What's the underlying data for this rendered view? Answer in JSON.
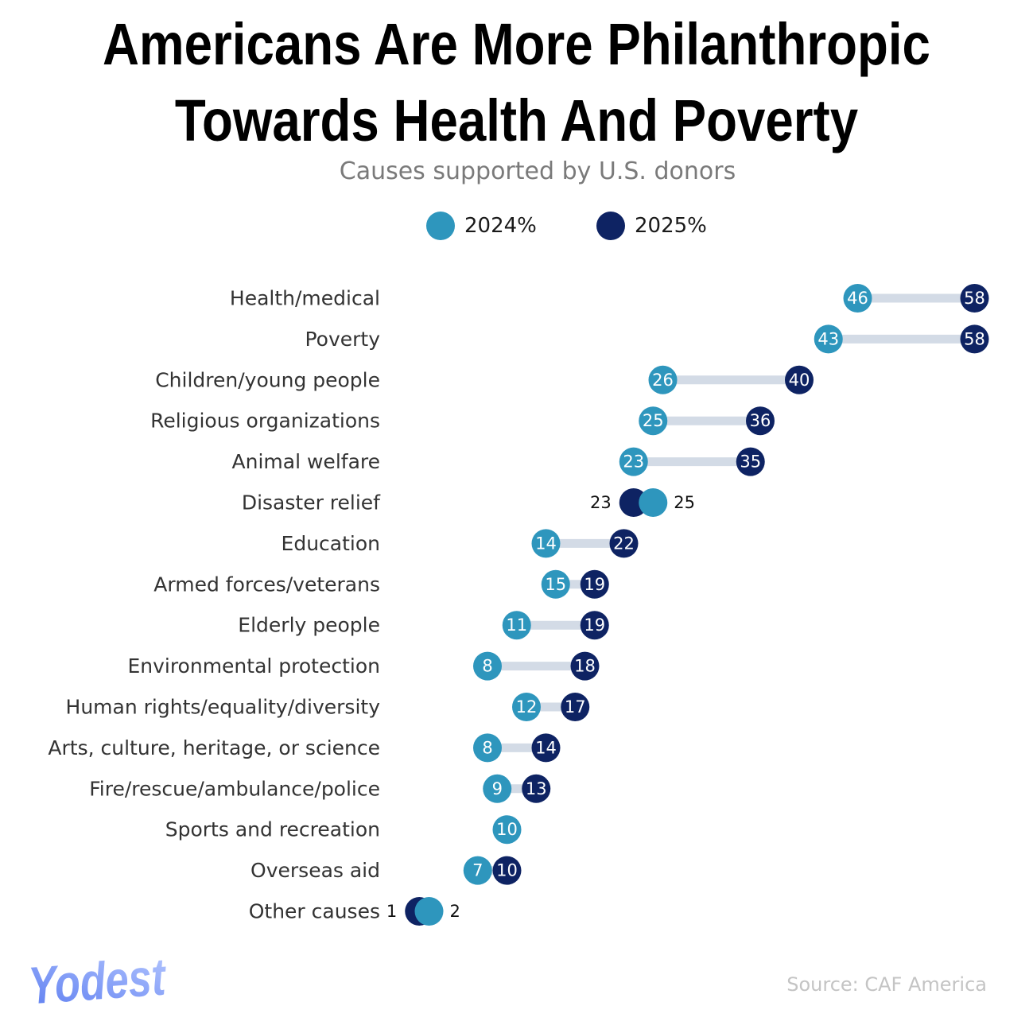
{
  "chart_data": {
    "type": "dumbbell",
    "title": "Americans Are More Philanthropic Towards Health And Poverty",
    "title_lines": [
      "Americans Are More Philanthropic",
      "Towards Health And Poverty"
    ],
    "subtitle": "Causes supported by U.S. donors",
    "series": [
      {
        "name": "2024%",
        "color": "#2e96bd"
      },
      {
        "name": "2025%",
        "color": "#0e2363"
      }
    ],
    "categories": [
      "Health/medical",
      "Poverty",
      "Children/young people",
      "Religious organizations",
      "Animal welfare",
      "Disaster relief",
      "Education",
      "Armed forces/veterans",
      "Elderly people",
      "Environmental protection",
      "Human rights/equality/diversity",
      "Arts, culture, heritage, or science",
      "Fire/rescue/ambulance/police",
      "Sports and recreation",
      "Overseas aid",
      "Other causes"
    ],
    "values_2024": [
      46,
      43,
      26,
      25,
      23,
      25,
      14,
      15,
      11,
      8,
      12,
      8,
      9,
      10,
      7,
      2
    ],
    "values_2025": [
      58,
      58,
      40,
      36,
      35,
      23,
      22,
      19,
      19,
      18,
      17,
      14,
      13,
      10,
      10,
      1
    ],
    "connector_color": "#d3dbe6"
  },
  "source": "Source: CAF America",
  "brand": "Yodest"
}
